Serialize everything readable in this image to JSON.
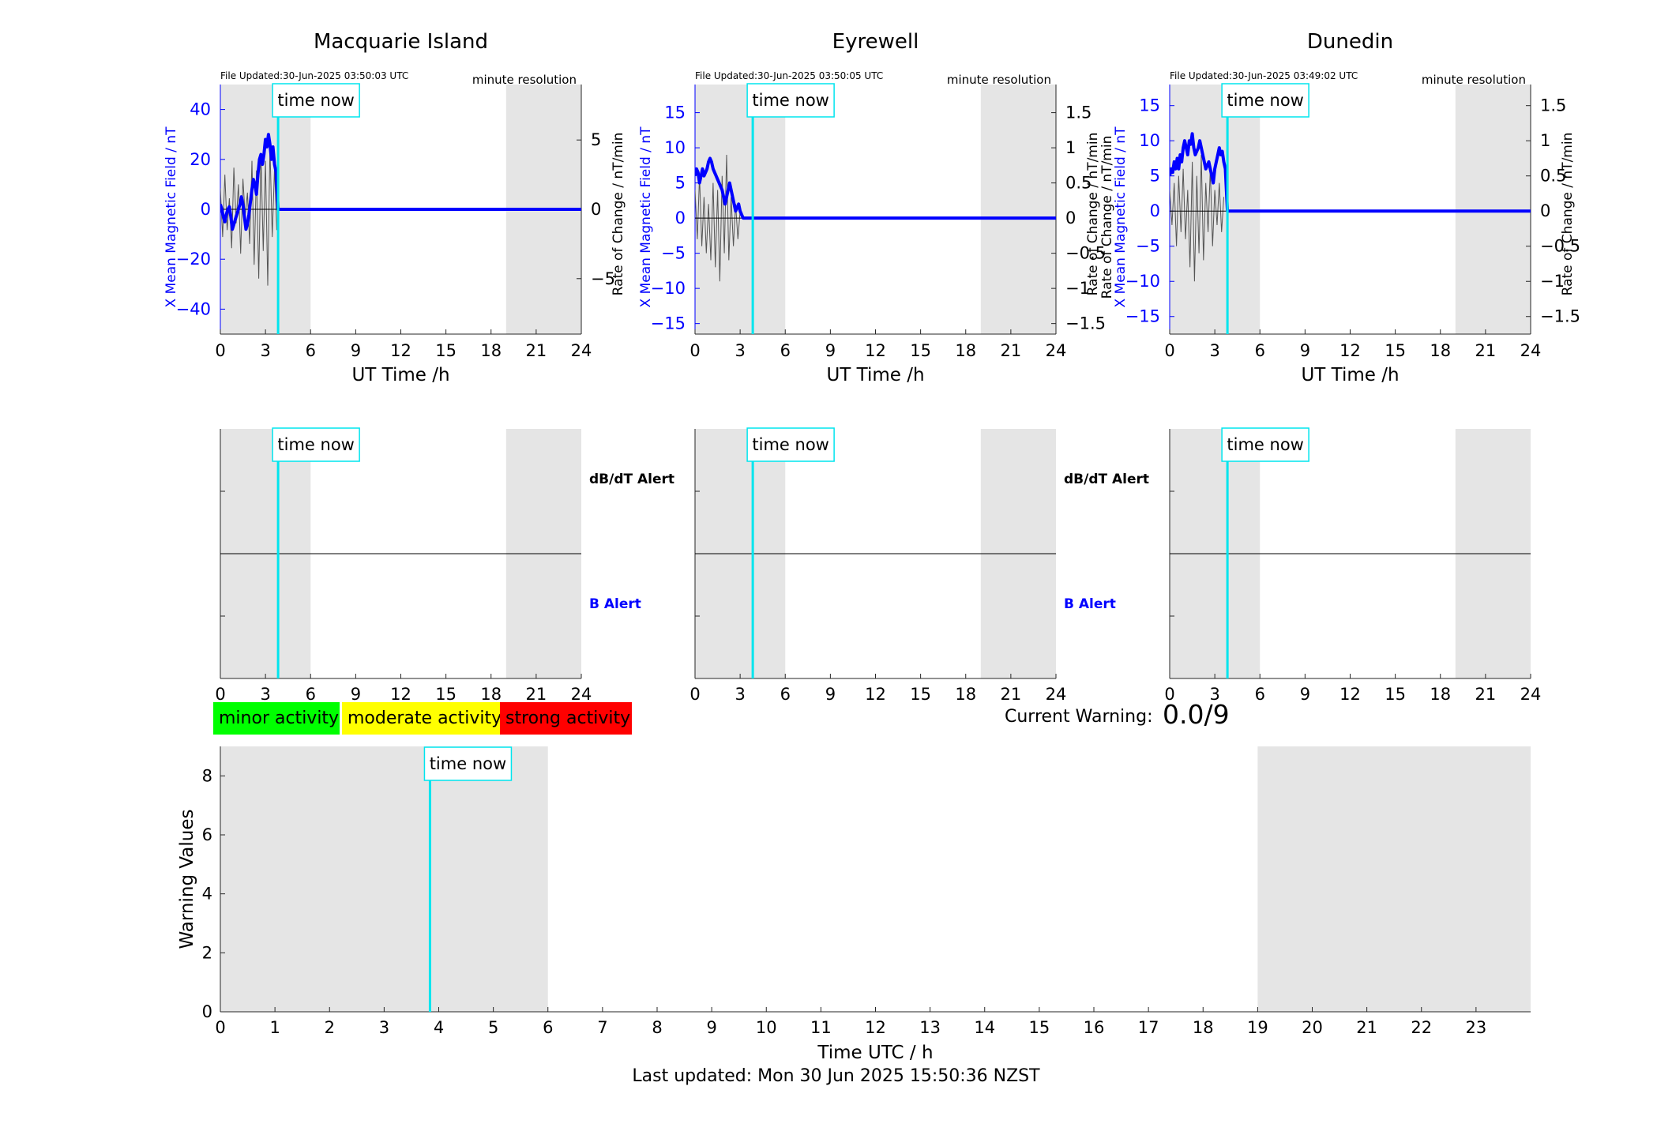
{
  "colors": {
    "mean_field": "#0000ff",
    "rate_of_change": "#555555",
    "time_now": "#00e5ee",
    "night_shading": "#e5e5e5",
    "minor": "#00ff00",
    "moderate": "#ffff00",
    "strong": "#ff0000"
  },
  "time_now_label": "time now",
  "legend": {
    "minor": "minor activity",
    "moderate": "moderate activity",
    "strong": "strong activity"
  },
  "current_warning": {
    "label": "Current Warning:",
    "value": "0.0/9"
  },
  "footer": "Last updated: Mon 30 Jun 2025 15:50:36 NZST",
  "chart_data": [
    {
      "type": "line",
      "station": "Macquarie Island",
      "file_updated": "File Updated:30-Jun-2025 03:50:03 UTC",
      "resolution": "minute resolution",
      "xlabel": "UT Time /h",
      "ylabel_left": "X Mean Magnetic Field / nT",
      "ylabel_right": "Rate of Change / nT/min",
      "xlim": [
        0,
        24
      ],
      "xticks": [
        0,
        3,
        6,
        9,
        12,
        15,
        18,
        21,
        24
      ],
      "ylim_left": [
        -50,
        50
      ],
      "yticks_left": [
        -40,
        -20,
        0,
        20,
        40
      ],
      "ylim_right": [
        -9,
        9
      ],
      "yticks_right": [
        -5,
        0,
        5
      ],
      "night_shading": [
        [
          0,
          6
        ],
        [
          19,
          24
        ]
      ],
      "time_now": 3.84,
      "series": [
        {
          "name": "X Mean Magnetic Field",
          "x": [
            0,
            0.1,
            0.2,
            0.3,
            0.4,
            0.5,
            0.6,
            0.7,
            0.8,
            0.9,
            1.0,
            1.1,
            1.2,
            1.3,
            1.4,
            1.5,
            1.6,
            1.7,
            1.8,
            1.9,
            2.0,
            2.1,
            2.2,
            2.3,
            2.4,
            2.5,
            2.6,
            2.7,
            2.8,
            2.9,
            3.0,
            3.1,
            3.2,
            3.3,
            3.4,
            3.5,
            3.6,
            3.7,
            3.84,
            24
          ],
          "y": [
            2,
            0,
            -3,
            -5,
            -2,
            0,
            1,
            -3,
            -8,
            -6,
            -4,
            -2,
            0,
            2,
            5,
            2,
            -3,
            -8,
            -6,
            -2,
            3,
            8,
            12,
            10,
            6,
            14,
            20,
            22,
            18,
            22,
            28,
            25,
            30,
            26,
            20,
            25,
            18,
            15,
            0,
            0
          ]
        },
        {
          "name": "Rate of Change",
          "x": [
            0,
            0.15,
            0.3,
            0.45,
            0.6,
            0.75,
            0.9,
            1.05,
            1.2,
            1.35,
            1.5,
            1.65,
            1.8,
            1.95,
            2.1,
            2.25,
            2.4,
            2.55,
            2.7,
            2.85,
            3.0,
            3.15,
            3.3,
            3.45,
            3.6,
            3.75
          ],
          "y": [
            1.5,
            -2.0,
            2.5,
            -1.5,
            0.8,
            -2.8,
            3.0,
            -1.0,
            1.8,
            -3.2,
            2.2,
            -0.5,
            1.2,
            -2.5,
            3.5,
            -4.0,
            2.8,
            -5.0,
            4.0,
            -3.0,
            3.5,
            -5.5,
            4.5,
            -2.0,
            3.0,
            -1.5
          ]
        }
      ]
    },
    {
      "type": "line",
      "station": "Eyrewell",
      "file_updated": "File Updated:30-Jun-2025 03:50:05 UTC",
      "resolution": "minute resolution",
      "xlabel": "UT Time /h",
      "ylabel_left": "X Mean Magnetic Field / nT",
      "ylabel_right": "Rate of Change / nT/min",
      "xlim": [
        0,
        24
      ],
      "xticks": [
        0,
        3,
        6,
        9,
        12,
        15,
        18,
        21,
        24
      ],
      "ylim_left": [
        -16.5,
        19
      ],
      "yticks_left": [
        -15,
        -10,
        -5,
        0,
        5,
        10,
        15
      ],
      "ylim_right": [
        -1.65,
        1.9
      ],
      "yticks_right": [
        -1.5,
        -1,
        -0.5,
        0,
        0.5,
        1,
        1.5
      ],
      "night_shading": [
        [
          0,
          6
        ],
        [
          19,
          24
        ]
      ],
      "time_now": 3.84,
      "series": [
        {
          "name": "X Mean Magnetic Field",
          "x": [
            0,
            0.1,
            0.2,
            0.3,
            0.4,
            0.5,
            0.6,
            0.7,
            0.8,
            0.9,
            1.0,
            1.1,
            1.2,
            1.3,
            1.4,
            1.5,
            1.6,
            1.7,
            1.8,
            1.9,
            2.0,
            2.1,
            2.2,
            2.3,
            2.4,
            2.5,
            2.6,
            2.7,
            2.8,
            2.9,
            3.0,
            3.1,
            3.2,
            3.84,
            24
          ],
          "y": [
            6,
            7,
            6.5,
            5,
            6,
            7,
            6,
            6.5,
            7,
            8,
            8.5,
            8,
            7,
            6.5,
            6,
            5.5,
            5,
            4.5,
            4,
            3,
            2,
            3,
            4,
            5,
            4,
            3,
            2,
            1,
            1.5,
            2,
            1,
            0.5,
            0,
            0,
            0
          ]
        },
        {
          "name": "Rate of Change",
          "x": [
            0,
            0.15,
            0.3,
            0.45,
            0.6,
            0.75,
            0.9,
            1.05,
            1.2,
            1.35,
            1.5,
            1.65,
            1.8,
            1.95,
            2.1,
            2.25,
            2.4,
            2.55,
            2.7,
            2.85,
            3.0
          ],
          "y": [
            0.4,
            -0.3,
            0.6,
            -0.4,
            0.3,
            -0.5,
            0.2,
            -0.6,
            0.5,
            -0.7,
            0.4,
            -0.9,
            0.6,
            -0.5,
            0.9,
            -0.6,
            0.3,
            -0.4,
            0.2,
            -0.3,
            0.1
          ]
        }
      ]
    },
    {
      "type": "line",
      "station": "Dunedin",
      "file_updated": "File Updated:30-Jun-2025 03:49:02 UTC",
      "resolution": "minute resolution",
      "xlabel": "UT Time /h",
      "ylabel_left": "X Mean Magnetic Field / nT",
      "ylabel_left2": "Rate of Change / nT/min",
      "ylabel_right": "Rate of Change / nT/min",
      "xlim": [
        0,
        24
      ],
      "xticks": [
        0,
        3,
        6,
        9,
        12,
        15,
        18,
        21,
        24
      ],
      "ylim_left": [
        -17.5,
        18
      ],
      "yticks_left": [
        -15,
        -10,
        -5,
        0,
        5,
        10,
        15
      ],
      "ylim_right": [
        -1.75,
        1.8
      ],
      "yticks_right": [
        -1.5,
        -1,
        -0.5,
        0,
        0.5,
        1,
        1.5
      ],
      "night_shading": [
        [
          0,
          6
        ],
        [
          19,
          24
        ]
      ],
      "time_now": 3.84,
      "series": [
        {
          "name": "X Mean Magnetic Field",
          "x": [
            0,
            0.1,
            0.2,
            0.3,
            0.4,
            0.5,
            0.6,
            0.7,
            0.8,
            0.9,
            1.0,
            1.1,
            1.2,
            1.3,
            1.4,
            1.5,
            1.6,
            1.7,
            1.8,
            1.9,
            2.0,
            2.1,
            2.2,
            2.3,
            2.4,
            2.5,
            2.6,
            2.7,
            2.8,
            2.9,
            3.0,
            3.1,
            3.2,
            3.3,
            3.4,
            3.5,
            3.6,
            3.7,
            3.84,
            24
          ],
          "y": [
            5,
            6,
            5.5,
            7,
            6,
            7.5,
            6,
            8,
            7,
            9,
            10,
            9,
            8,
            10,
            9.5,
            11,
            9,
            8,
            8.5,
            9,
            10,
            9,
            8,
            7,
            6,
            6.5,
            7,
            6,
            5,
            4,
            6,
            7,
            8,
            9,
            8,
            8.5,
            7,
            6,
            0,
            0
          ]
        },
        {
          "name": "Rate of Change",
          "x": [
            0,
            0.15,
            0.3,
            0.45,
            0.6,
            0.75,
            0.9,
            1.05,
            1.2,
            1.35,
            1.5,
            1.65,
            1.8,
            1.95,
            2.1,
            2.25,
            2.4,
            2.55,
            2.7,
            2.85,
            3.0,
            3.15,
            3.3,
            3.45,
            3.6
          ],
          "y": [
            0.3,
            -0.2,
            0.4,
            -0.5,
            0.5,
            -0.3,
            0.6,
            -0.4,
            0.3,
            -0.8,
            0.7,
            -1.0,
            0.5,
            -0.6,
            0.8,
            -0.7,
            0.4,
            -0.3,
            0.6,
            -0.5,
            0.3,
            -0.2,
            0.4,
            -0.3,
            0.2
          ]
        }
      ]
    },
    {
      "type": "line",
      "station": "Macquarie Island",
      "panel": "alert",
      "xlim": [
        0,
        24
      ],
      "xticks": [
        0,
        3,
        6,
        9,
        12,
        15,
        18,
        21,
        24
      ],
      "night_shading": [
        [
          0,
          6
        ],
        [
          19,
          24
        ]
      ],
      "time_now": 3.84,
      "dbdt_label": "dB/dT Alert",
      "b_label": "B Alert"
    },
    {
      "type": "line",
      "station": "Eyrewell",
      "panel": "alert",
      "xlim": [
        0,
        24
      ],
      "xticks": [
        0,
        3,
        6,
        9,
        12,
        15,
        18,
        21,
        24
      ],
      "night_shading": [
        [
          0,
          6
        ],
        [
          19,
          24
        ]
      ],
      "time_now": 3.84,
      "dbdt_label": "dB/dT Alert",
      "b_label": "B Alert"
    },
    {
      "type": "line",
      "station": "Dunedin",
      "panel": "alert",
      "xlim": [
        0,
        24
      ],
      "xticks": [
        0,
        3,
        6,
        9,
        12,
        15,
        18,
        21,
        24
      ],
      "night_shading": [
        [
          0,
          6
        ],
        [
          19,
          24
        ]
      ],
      "time_now": 3.84
    },
    {
      "type": "line",
      "panel": "warning",
      "xlabel": "Time UTC / h",
      "ylabel": "Warning Values",
      "xlim": [
        0,
        24
      ],
      "xticks": [
        0,
        1,
        2,
        3,
        4,
        5,
        6,
        7,
        8,
        9,
        10,
        11,
        12,
        13,
        14,
        15,
        16,
        17,
        18,
        19,
        20,
        21,
        22,
        23
      ],
      "ylim": [
        0,
        9
      ],
      "yticks": [
        0,
        2,
        4,
        6,
        8
      ],
      "night_shading": [
        [
          0,
          6
        ],
        [
          19,
          24
        ]
      ],
      "time_now": 3.84
    }
  ]
}
